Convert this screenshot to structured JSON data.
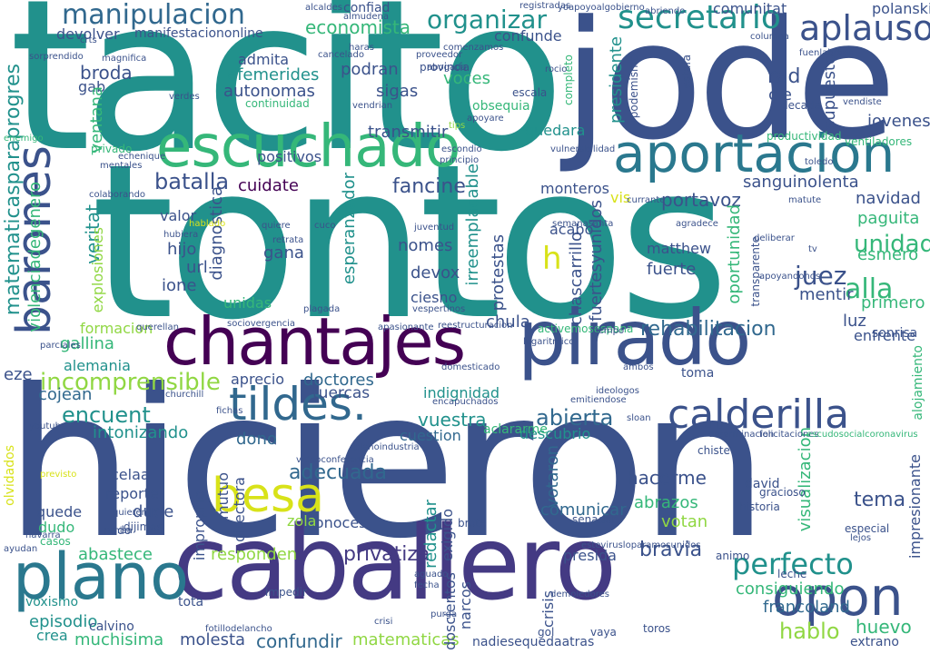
{
  "palette": {
    "dark_purple": "#440154",
    "indigo": "#3b528b",
    "blue": "#31688e",
    "teal": "#21918c",
    "green": "#35b779",
    "lime": "#90d743",
    "yellow": "#d8e219"
  },
  "words": [
    {
      "text": "tacito",
      "color": "#21918c"
    },
    {
      "text": "jode",
      "color": "#3b528b"
    },
    {
      "text": "tontos",
      "color": "#21918c"
    },
    {
      "text": "hicieron",
      "color": "#3b528b"
    },
    {
      "text": "caballero",
      "color": "#443a83"
    },
    {
      "text": "chantajes",
      "color": "#440154"
    },
    {
      "text": "pirado",
      "color": "#3b528b"
    },
    {
      "text": "escuchado",
      "color": "#35b779"
    },
    {
      "text": "aportacion",
      "color": "#2a788e"
    },
    {
      "text": "tildes.",
      "color": "#31688e"
    },
    {
      "text": "calderilla",
      "color": "#3b528b"
    },
    {
      "text": "besa",
      "color": "#d8e219"
    },
    {
      "text": "plano",
      "color": "#2a788e"
    },
    {
      "text": "opon",
      "color": "#3b528b"
    },
    {
      "text": "manipulacion",
      "color": "#31688e"
    },
    {
      "text": "secretario",
      "color": "#21918c"
    },
    {
      "text": "barones",
      "color": "#3b528b"
    },
    {
      "text": "aplausos",
      "color": "#3b528b"
    },
    {
      "text": "organizar",
      "color": "#21918c"
    },
    {
      "text": "rehabilitacion",
      "color": "#31688e"
    },
    {
      "text": "perfecto",
      "color": "#21918c"
    },
    {
      "text": "unidad",
      "color": "#35b779"
    },
    {
      "text": "incomprensible",
      "color": "#90d743"
    },
    {
      "text": "abierta",
      "color": "#31688e"
    },
    {
      "text": "encuent",
      "color": "#21918c"
    },
    {
      "text": "adecuada",
      "color": "#31688e"
    },
    {
      "text": "privatiza",
      "color": "#443a83"
    },
    {
      "text": "bravia",
      "color": "#3b528b"
    },
    {
      "text": "fancine",
      "color": "#3b528b"
    },
    {
      "text": "cuidate",
      "color": "#440154"
    },
    {
      "text": "batalla",
      "color": "#3b528b"
    },
    {
      "text": "juez",
      "color": "#3b528b"
    },
    {
      "text": "alla",
      "color": "#35b779"
    },
    {
      "text": "portavoz",
      "color": "#3b528b"
    },
    {
      "text": "sanguinolenta",
      "color": "#3b528b"
    },
    {
      "text": "doctores",
      "color": "#31688e"
    },
    {
      "text": "tuercas",
      "color": "#3b528b"
    },
    {
      "text": "vuestra",
      "color": "#21918c"
    },
    {
      "text": "cuestion",
      "color": "#31688e"
    },
    {
      "text": "hacerme",
      "color": "#3b528b"
    },
    {
      "text": "tema",
      "color": "#3b528b"
    },
    {
      "text": "hablo",
      "color": "#90d743"
    },
    {
      "text": "huevo",
      "color": "#35b779"
    },
    {
      "text": "francoland",
      "color": "#31688e"
    },
    {
      "text": "matematicas",
      "color": "#90d743"
    },
    {
      "text": "confundir",
      "color": "#31688e"
    },
    {
      "text": "episodio",
      "color": "#21918c"
    },
    {
      "text": "muchisima",
      "color": "#35b779"
    },
    {
      "text": "crea",
      "color": "#21918c"
    },
    {
      "text": "molesta",
      "color": "#3b528b"
    },
    {
      "text": "responden",
      "color": "#90d743"
    },
    {
      "text": "abastece",
      "color": "#35b779"
    },
    {
      "text": "consiguiendo",
      "color": "#35b779"
    },
    {
      "text": "votan",
      "color": "#90d743"
    },
    {
      "text": "abrazos",
      "color": "#35b779"
    },
    {
      "text": "comunicar",
      "color": "#31688e"
    },
    {
      "text": "conoces",
      "color": "#3b528b"
    },
    {
      "text": "presida",
      "color": "#3b528b"
    },
    {
      "text": "reporte",
      "color": "#3b528b"
    },
    {
      "text": "dude",
      "color": "#3b528b"
    },
    {
      "text": "celaa",
      "color": "#3b528b"
    },
    {
      "text": "quede",
      "color": "#3b528b"
    },
    {
      "text": "dudo",
      "color": "#35b779"
    },
    {
      "text": "zola",
      "color": "#90d743"
    },
    {
      "text": "dono",
      "color": "#31688e"
    },
    {
      "text": "intonizando",
      "color": "#21918c"
    },
    {
      "text": "cojean",
      "color": "#31688e"
    },
    {
      "text": "eze",
      "color": "#3b528b"
    },
    {
      "text": "alemania",
      "color": "#21918c"
    },
    {
      "text": "gallina",
      "color": "#35b779"
    },
    {
      "text": "aprecio",
      "color": "#3b528b"
    },
    {
      "text": "indignidad",
      "color": "#21918c"
    },
    {
      "text": "descubrio",
      "color": "#21918c"
    },
    {
      "text": "luz",
      "color": "#3b528b"
    },
    {
      "text": "primero",
      "color": "#35b779"
    },
    {
      "text": "enfrente",
      "color": "#3b528b"
    },
    {
      "text": "mentir",
      "color": "#3b528b"
    },
    {
      "text": "esmero",
      "color": "#35b779"
    },
    {
      "text": "paguita",
      "color": "#35b779"
    },
    {
      "text": "navidad",
      "color": "#3b528b"
    },
    {
      "text": "jovenes",
      "color": "#3b528b"
    },
    {
      "text": "fuerte",
      "color": "#3b528b"
    },
    {
      "text": "matthew",
      "color": "#3b528b"
    },
    {
      "text": "chula",
      "color": "#3b528b"
    },
    {
      "text": "protestas",
      "color": "#3b528b"
    },
    {
      "text": "ciesno",
      "color": "#3b528b"
    },
    {
      "text": "devox",
      "color": "#3b528b"
    },
    {
      "text": "nomes",
      "color": "#3b528b"
    },
    {
      "text": "gana",
      "color": "#3b528b"
    },
    {
      "text": "ione",
      "color": "#3b528b"
    },
    {
      "text": "url",
      "color": "#3b528b"
    },
    {
      "text": "hijo",
      "color": "#3b528b"
    },
    {
      "text": "valor",
      "color": "#3b528b"
    },
    {
      "text": "diagnostica",
      "color": "#3b528b"
    },
    {
      "text": "positivos",
      "color": "#3b528b"
    },
    {
      "text": "transmitir",
      "color": "#3b528b"
    },
    {
      "text": "quedara",
      "color": "#21918c"
    },
    {
      "text": "monteros",
      "color": "#3b528b"
    },
    {
      "text": "acabo",
      "color": "#3b528b"
    },
    {
      "text": "podran",
      "color": "#3b528b"
    },
    {
      "text": "sigas",
      "color": "#3b528b"
    },
    {
      "text": "voces",
      "color": "#35b779"
    },
    {
      "text": "autonomas",
      "color": "#3b528b"
    },
    {
      "text": "efemerides",
      "color": "#21918c"
    },
    {
      "text": "admita",
      "color": "#3b528b"
    },
    {
      "text": "economista",
      "color": "#35b779"
    },
    {
      "text": "devolver",
      "color": "#3b528b"
    },
    {
      "text": "manifestaciononline",
      "color": "#3b528b"
    },
    {
      "text": "confiad",
      "color": "#3b528b"
    },
    {
      "text": "confunde",
      "color": "#3b528b"
    },
    {
      "text": "comunitat",
      "color": "#3b528b"
    },
    {
      "text": "polanski",
      "color": "#3b528b"
    },
    {
      "text": "broda",
      "color": "#3b528b"
    },
    {
      "text": "gab",
      "color": "#3b528b"
    },
    {
      "text": "rad",
      "color": "#3b528b"
    },
    {
      "text": "cie",
      "color": "#3b528b"
    },
    {
      "text": "supuesto",
      "color": "#3b528b"
    },
    {
      "text": "matematicasparaprogres",
      "color": "#21918c"
    },
    {
      "text": "violenciadegenero",
      "color": "#35b779"
    },
    {
      "text": "veritat",
      "color": "#21918c"
    },
    {
      "text": "irreemplacable",
      "color": "#21918c"
    },
    {
      "text": "esperanzador",
      "color": "#21918c"
    },
    {
      "text": "fuertesyunidos",
      "color": "#3b528b"
    },
    {
      "text": "chascarrillo",
      "color": "#3b528b"
    },
    {
      "text": "oportunidad",
      "color": "#35b779"
    },
    {
      "text": "presidente",
      "color": "#21918c"
    },
    {
      "text": "visualizacion",
      "color": "#35b779"
    },
    {
      "text": "impresionante",
      "color": "#3b528b"
    },
    {
      "text": "redactar",
      "color": "#21918c"
    },
    {
      "text": "exigido",
      "color": "#3b528b"
    },
    {
      "text": "votaron",
      "color": "#31688e"
    },
    {
      "text": "narcos",
      "color": "#3b528b"
    },
    {
      "text": "doscientos",
      "color": "#3b528b"
    },
    {
      "text": "crisis",
      "color": "#3b528b"
    },
    {
      "text": "vis",
      "color": "#d8e219"
    },
    {
      "text": "unidas",
      "color": "#35b779"
    },
    {
      "text": "explosiones",
      "color": "#90d743"
    },
    {
      "text": "formacion",
      "color": "#90d743"
    },
    {
      "text": "ventana",
      "color": "#35b779"
    },
    {
      "text": "h",
      "color": "#d8e219"
    },
    {
      "text": "improprio",
      "color": "#3b528b"
    },
    {
      "text": "mutuo",
      "color": "#3b528b"
    },
    {
      "text": "directora",
      "color": "#3b528b"
    },
    {
      "text": "youtube",
      "color": "#3b528b"
    },
    {
      "text": "navarra",
      "color": "#3b528b"
    },
    {
      "text": "calvino",
      "color": "#3b528b"
    },
    {
      "text": "voxismo",
      "color": "#21918c"
    },
    {
      "text": "tota",
      "color": "#3b528b"
    },
    {
      "text": "nadiesequedaatras",
      "color": "#3b528b"
    },
    {
      "text": "extrano",
      "color": "#3b528b"
    },
    {
      "text": "david",
      "color": "#3b528b"
    },
    {
      "text": "sonrisa",
      "color": "#3b528b"
    },
    {
      "text": "olvidados",
      "color": "#d8e219"
    },
    {
      "text": "toma",
      "color": "#3b528b"
    },
    {
      "text": "alojamiento",
      "color": "#35b779"
    },
    {
      "text": "churchill",
      "color": "#3b528b"
    },
    {
      "text": "fichas",
      "color": "#3b528b"
    },
    {
      "text": "aclararme",
      "color": "#35b779"
    },
    {
      "text": "apasionante",
      "color": "#3b528b"
    },
    {
      "text": "sociovergencia",
      "color": "#3b528b"
    },
    {
      "text": "ayudan",
      "color": "#3b528b"
    },
    {
      "text": "gol",
      "color": "#3b528b"
    },
    {
      "text": "leche",
      "color": "#3b528b"
    },
    {
      "text": "quieren",
      "color": "#3b528b"
    },
    {
      "text": "misa",
      "color": "#3b528b"
    },
    {
      "text": "casos",
      "color": "#35b779"
    },
    {
      "text": "purga",
      "color": "#3b528b"
    },
    {
      "text": "fecha",
      "color": "#3b528b"
    },
    {
      "text": "aguado",
      "color": "#3b528b"
    },
    {
      "text": "sloan",
      "color": "#3b528b"
    },
    {
      "text": "ambos",
      "color": "#3b528b"
    },
    {
      "text": "brote",
      "color": "#3b528b"
    },
    {
      "text": "senador",
      "color": "#3b528b"
    },
    {
      "text": "historia",
      "color": "#3b528b"
    },
    {
      "text": "especial",
      "color": "#3b528b"
    },
    {
      "text": "lejos",
      "color": "#3b528b"
    },
    {
      "text": "chiste",
      "color": "#3b528b"
    },
    {
      "text": "gracioso",
      "color": "#3b528b"
    },
    {
      "text": "animo",
      "color": "#3b528b"
    },
    {
      "text": "toros",
      "color": "#3b528b"
    },
    {
      "text": "vaya",
      "color": "#3b528b"
    },
    {
      "text": "crisi",
      "color": "#3b528b"
    },
    {
      "text": "impedir",
      "color": "#3b528b"
    },
    {
      "text": "dijimos",
      "color": "#3b528b"
    },
    {
      "text": "nudo",
      "color": "#3b528b"
    },
    {
      "text": "previsto",
      "color": "#d8e219"
    },
    {
      "text": "vespertinos",
      "color": "#3b528b"
    },
    {
      "text": "juventud",
      "color": "#3b528b"
    },
    {
      "text": "retrata",
      "color": "#3b528b"
    },
    {
      "text": "cuco",
      "color": "#3b528b"
    },
    {
      "text": "escondio",
      "color": "#3b528b"
    },
    {
      "text": "principio",
      "color": "#3b528b"
    },
    {
      "text": "productividad",
      "color": "#35b779"
    },
    {
      "text": "toledo",
      "color": "#3b528b"
    },
    {
      "text": "decada",
      "color": "#3b528b"
    },
    {
      "text": "estafa",
      "color": "#3b528b"
    },
    {
      "text": "podemismo",
      "color": "#3b528b"
    },
    {
      "text": "completo",
      "color": "#35b779"
    },
    {
      "text": "provincia",
      "color": "#3b528b"
    },
    {
      "text": "escala",
      "color": "#3b528b"
    },
    {
      "text": "tips",
      "color": "#90d743"
    },
    {
      "text": "apoyare",
      "color": "#3b528b"
    },
    {
      "text": "proveedor",
      "color": "#3b528b"
    },
    {
      "text": "abogada",
      "color": "#3b528b"
    },
    {
      "text": "rocio",
      "color": "#3b528b"
    },
    {
      "text": "registradas",
      "color": "#3b528b"
    },
    {
      "text": "abriendo",
      "color": "#3b528b"
    },
    {
      "text": "almudena",
      "color": "#3b528b"
    },
    {
      "text": "alcaldes",
      "color": "#3b528b"
    },
    {
      "text": "haras",
      "color": "#3b528b"
    },
    {
      "text": "cancelado",
      "color": "#3b528b"
    },
    {
      "text": "comenzamos",
      "color": "#3b528b"
    },
    {
      "text": "sorprendido",
      "color": "#3b528b"
    },
    {
      "text": "magnifica",
      "color": "#3b528b"
    },
    {
      "text": "crts",
      "color": "#3b528b"
    },
    {
      "text": "hablado",
      "color": "#d8e219"
    },
    {
      "text": "quiere",
      "color": "#3b528b"
    },
    {
      "text": "hubiera",
      "color": "#3b528b"
    },
    {
      "text": "privado",
      "color": "#35b779"
    },
    {
      "text": "mentales",
      "color": "#3b528b"
    },
    {
      "text": "colaborando",
      "color": "#3b528b"
    },
    {
      "text": "echenique",
      "color": "#3b528b"
    },
    {
      "text": "verdes",
      "color": "#3b528b"
    },
    {
      "text": "continuidad",
      "color": "#35b779"
    },
    {
      "text": "vendrian",
      "color": "#3b528b"
    },
    {
      "text": "ventiladores",
      "color": "#35b779"
    },
    {
      "text": "columna",
      "color": "#3b528b"
    },
    {
      "text": "fuenlabrada",
      "color": "#3b528b"
    },
    {
      "text": "yoapoyoalgobierno",
      "color": "#3b528b"
    },
    {
      "text": "determinacion",
      "color": "#3b528b"
    },
    {
      "text": "felicitaciones",
      "color": "#3b528b"
    },
    {
      "text": "escudosocialcoronavirus",
      "color": "#35b779"
    },
    {
      "text": "emitiendose",
      "color": "#3b528b"
    },
    {
      "text": "ideologos",
      "color": "#3b528b"
    },
    {
      "text": "estevirusloparamosunidos",
      "color": "#3b528b"
    },
    {
      "text": "fotillodelancho",
      "color": "#3b528b"
    },
    {
      "text": "demoledores",
      "color": "#3b528b"
    },
    {
      "text": "videoconferencia",
      "color": "#3b528b"
    },
    {
      "text": "plenoindustria",
      "color": "#3b528b"
    },
    {
      "text": "encapuchados",
      "color": "#3b528b"
    },
    {
      "text": "domesticado",
      "color": "#3b528b"
    },
    {
      "text": "logaritmico",
      "color": "#3b528b"
    },
    {
      "text": "activemosespana",
      "color": "#3b528b"
    },
    {
      "text": "reestructuracion",
      "color": "#3b528b"
    },
    {
      "text": "plagada",
      "color": "#35b779"
    },
    {
      "text": "parciales",
      "color": "#3b528b"
    },
    {
      "text": "querellan",
      "color": "#3b528b"
    },
    {
      "text": "deliberar",
      "color": "#3b528b"
    },
    {
      "text": "apoyandonos",
      "color": "#3b528b"
    },
    {
      "text": "transparente",
      "color": "#3b528b"
    },
    {
      "text": "agradece",
      "color": "#3b528b"
    },
    {
      "text": "matute",
      "color": "#3b528b"
    },
    {
      "text": "currante",
      "color": "#3b528b"
    },
    {
      "text": "vulnerabilidad",
      "color": "#3b528b"
    },
    {
      "text": "enemigo",
      "color": "#3b528b"
    },
    {
      "text": "obsequia",
      "color": "#3b528b"
    },
    {
      "text": "semanasanta",
      "color": "#35b779"
    },
    {
      "text": "tv",
      "color": "#35b779"
    },
    {
      "text": "tiempo",
      "color": "#3b528b"
    },
    {
      "text": "vendiste",
      "color": "#3b528b"
    },
    {
      "text": "cubiertos",
      "color": "#3b528b"
    },
    {
      "text": "parlamentario",
      "color": "#3b528b"
    }
  ]
}
